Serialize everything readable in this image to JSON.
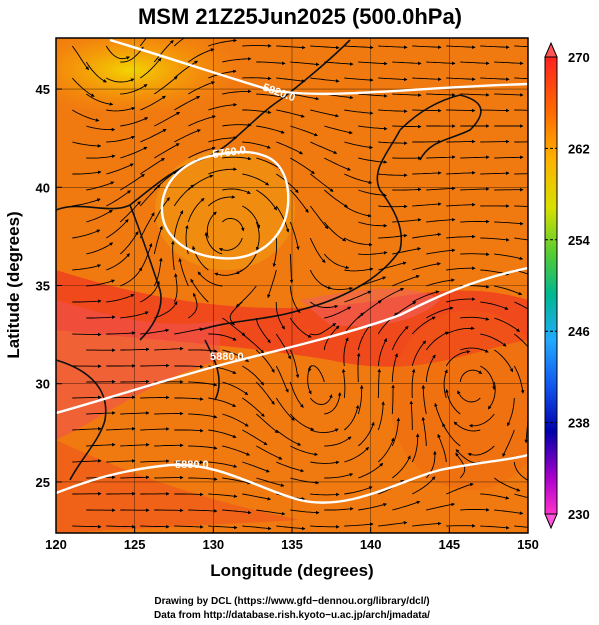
{
  "title": "MSM 21Z25Jun2025 (500.0hPa)",
  "x_axis": {
    "label": "Longitude (degrees)",
    "ticks": [
      "120",
      "125",
      "130",
      "135",
      "140",
      "145",
      "150"
    ],
    "range": [
      120,
      150
    ]
  },
  "y_axis": {
    "label": "Latitude  (degrees)",
    "ticks": [
      "25",
      "30",
      "35",
      "40",
      "45"
    ],
    "range": [
      22.4,
      47.6
    ]
  },
  "colorbar": {
    "labels": [
      "270",
      "262",
      "254",
      "246",
      "238",
      "230"
    ],
    "range": [
      230,
      270
    ],
    "colors": [
      "#ff3333",
      "#ff9900",
      "#ffee00",
      "#66cc33",
      "#00bbaa",
      "#3399ff",
      "#0000cc",
      "#ff33cc"
    ]
  },
  "contours": [
    {
      "label": "5880.0"
    },
    {
      "label": "5880.0"
    },
    {
      "label": "5820.0"
    },
    {
      "label": "5760.0"
    }
  ],
  "credits": {
    "line1": "Drawing by DCL (https://www.gfd−dennou.org/library/dcl/)",
    "line2": "Data from http://database.rish.kyoto−u.ac.jp/arch/jmadata/"
  }
}
